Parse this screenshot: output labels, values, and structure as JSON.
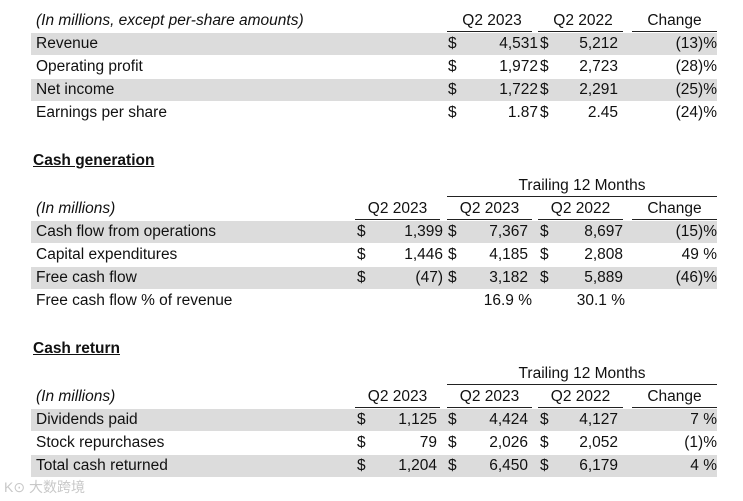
{
  "summary": {
    "caption": "(In millions, except per-share amounts)",
    "columns": [
      "Q2 2023",
      "Q2 2022",
      "Change"
    ],
    "rows": [
      {
        "label": "Revenue",
        "d1": "$",
        "v1": "4,531",
        "d2": "$",
        "v2": "5,212",
        "chg": "(13)%"
      },
      {
        "label": "Operating profit",
        "d1": "$",
        "v1": "1,972",
        "d2": "$",
        "v2": "2,723",
        "chg": "(28)%"
      },
      {
        "label": "Net income",
        "d1": "$",
        "v1": "1,722",
        "d2": "$",
        "v2": "2,291",
        "chg": "(25)%"
      },
      {
        "label": "Earnings per share",
        "d1": "$",
        "v1": "1.87",
        "d2": "$",
        "v2": "2.45",
        "chg": "(24)%"
      }
    ]
  },
  "cash_generation": {
    "title": "Cash generation",
    "group_header": "Trailing 12 Months",
    "caption": "(In millions)",
    "columns": [
      "Q2 2023",
      "Q2 2023",
      "Q2 2022",
      "Change"
    ],
    "rows": [
      {
        "label": "Cash flow from operations",
        "d0": "$",
        "v0": "1,399",
        "d1": "$",
        "v1": "7,367",
        "d2": "$",
        "v2": "8,697",
        "chg": "(15)%"
      },
      {
        "label": "Capital expenditures",
        "d0": "$",
        "v0": "1,446",
        "d1": "$",
        "v1": "4,185",
        "d2": "$",
        "v2": "2,808",
        "chg": "49 %"
      },
      {
        "label": "Free cash flow",
        "d0": "$",
        "v0": "(47)",
        "d1": "$",
        "v1": "3,182",
        "d2": "$",
        "v2": "5,889",
        "chg": "(46)%"
      },
      {
        "label": "Free cash flow % of revenue",
        "d0": "",
        "v0": "",
        "d1": "",
        "v1": "16.9 %",
        "d2": "",
        "v2": "30.1 %",
        "chg": ""
      }
    ]
  },
  "cash_return": {
    "title": "Cash return",
    "group_header": "Trailing 12 Months",
    "caption": "(In millions)",
    "columns": [
      "Q2 2023",
      "Q2 2023",
      "Q2 2022",
      "Change"
    ],
    "rows": [
      {
        "label": "Dividends paid",
        "d0": "$",
        "v0": "1,125",
        "d1": "$",
        "v1": "4,424",
        "d2": "$",
        "v2": "4,127",
        "chg": "7 %"
      },
      {
        "label": "Stock repurchases",
        "d0": "$",
        "v0": "79",
        "d1": "$",
        "v1": "2,026",
        "d2": "$",
        "v2": "2,052",
        "chg": "(1)%"
      },
      {
        "label": "Total cash returned",
        "d0": "$",
        "v0": "1,204",
        "d1": "$",
        "v1": "6,450",
        "d2": "$",
        "v2": "6,179",
        "chg": "4 %"
      }
    ]
  },
  "watermark": "K⊙ 大数跨境"
}
